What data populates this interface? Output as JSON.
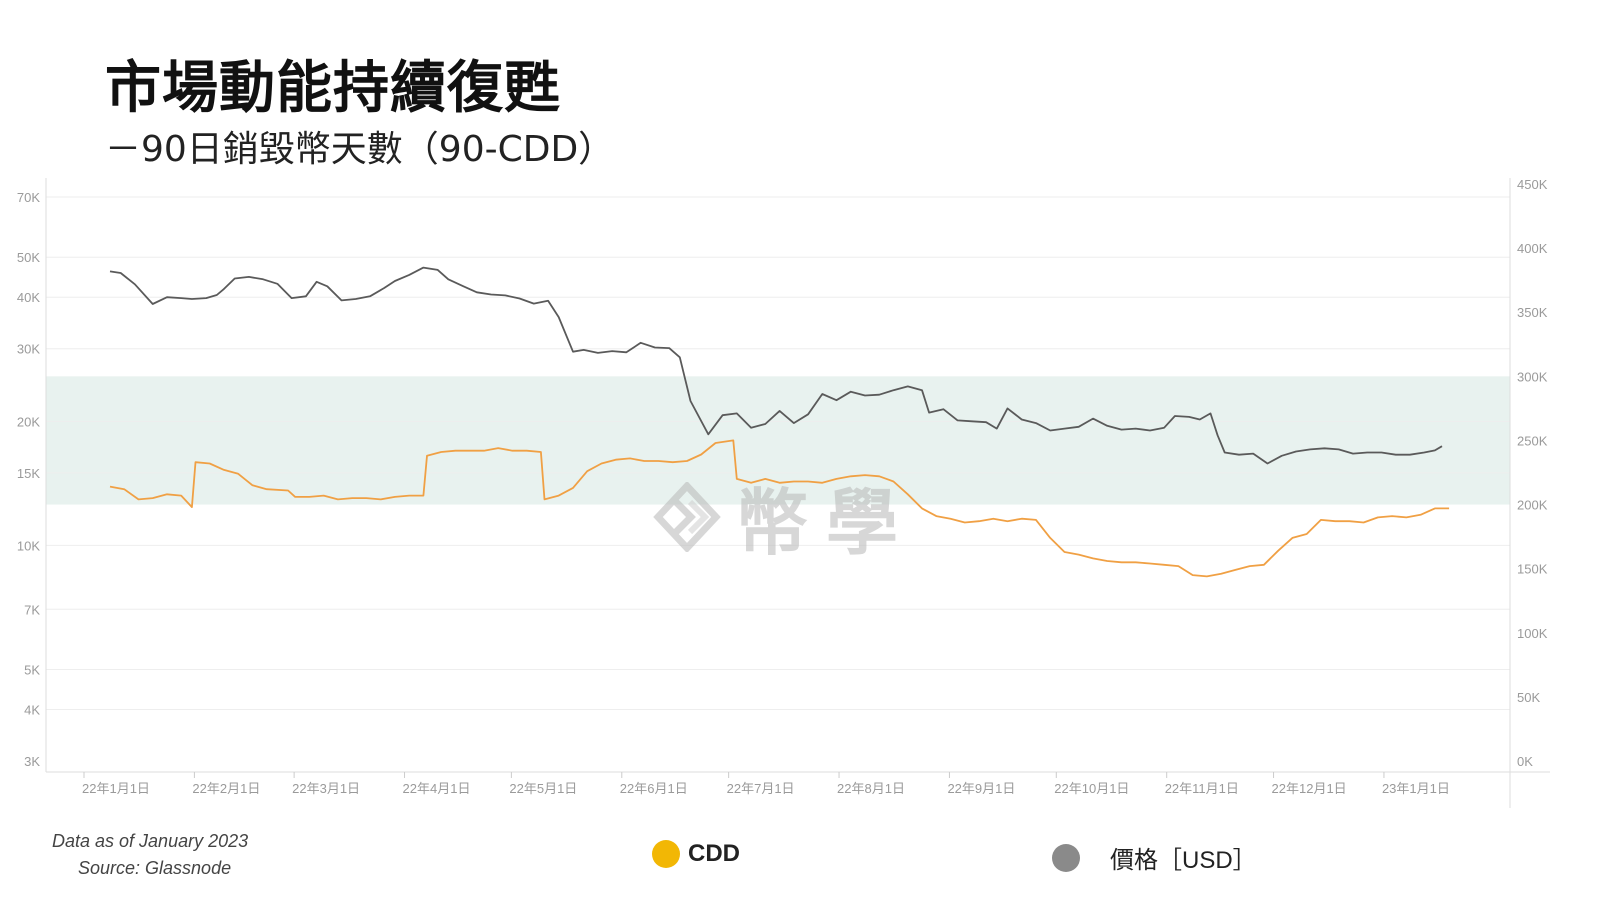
{
  "title": "市場動能持續復甦",
  "subtitle": "－90日銷毀幣天數（90-CDD）",
  "footnote": {
    "line1": "Data as of  January 2023",
    "line2": "Source: Glassnode"
  },
  "watermark": "幣學",
  "legend": [
    {
      "label": "CDD",
      "color": "#f2b705"
    },
    {
      "label": "價格［USD］",
      "color": "#8a8a8a"
    }
  ],
  "colors": {
    "price_line": "#5a5a5a",
    "cdd_line": "#f0a044",
    "band": "#e8f2ef",
    "grid": "#eeeeee"
  },
  "chart_data": {
    "type": "line",
    "x_ticks": [
      "22年1月1日",
      "22年2月1日",
      "22年3月1日",
      "22年4月1日",
      "22年5月1日",
      "22年6月1日",
      "22年7月1日",
      "22年8月1日",
      "22年9月1日",
      "22年10月1日",
      "22年11月1日",
      "22年12月1日",
      "23年1月1日"
    ],
    "y_left": {
      "scale": "log",
      "ticks": [
        "3K",
        "4K",
        "5K",
        "7K",
        "10K",
        "15K",
        "20K",
        "30K",
        "40K",
        "50K",
        "70K"
      ],
      "tick_values": [
        3000,
        4000,
        5000,
        7000,
        10000,
        15000,
        20000,
        30000,
        40000,
        50000,
        70000
      ]
    },
    "y_right": {
      "scale": "linear",
      "ticks": [
        "0K",
        "50K",
        "100K",
        "150K",
        "200K",
        "250K",
        "300K",
        "350K",
        "400K",
        "450K"
      ],
      "tick_values": [
        0,
        50000,
        100000,
        150000,
        200000,
        250000,
        300000,
        350000,
        400000,
        450000
      ]
    },
    "band": {
      "axis": "right",
      "range": [
        200000,
        300000
      ]
    },
    "grid": true,
    "series": [
      {
        "name": "價格［USD］",
        "axis": "left",
        "points": [
          [
            "2022-01-01",
            46200
          ],
          [
            "2022-01-04",
            45800
          ],
          [
            "2022-01-08",
            43000
          ],
          [
            "2022-01-13",
            38500
          ],
          [
            "2022-01-17",
            40000
          ],
          [
            "2022-01-21",
            39800
          ],
          [
            "2022-01-24",
            39600
          ],
          [
            "2022-01-28",
            39800
          ],
          [
            "2022-01-31",
            40500
          ],
          [
            "2022-02-02",
            41900
          ],
          [
            "2022-02-05",
            44400
          ],
          [
            "2022-02-09",
            44800
          ],
          [
            "2022-02-13",
            44200
          ],
          [
            "2022-02-17",
            43100
          ],
          [
            "2022-02-21",
            39800
          ],
          [
            "2022-02-25",
            40200
          ],
          [
            "2022-02-28",
            43600
          ],
          [
            "2022-03-03",
            42500
          ],
          [
            "2022-03-07",
            39300
          ],
          [
            "2022-03-11",
            39600
          ],
          [
            "2022-03-15",
            40200
          ],
          [
            "2022-03-19",
            42100
          ],
          [
            "2022-03-22",
            43800
          ],
          [
            "2022-03-26",
            45300
          ],
          [
            "2022-03-30",
            47200
          ],
          [
            "2022-04-03",
            46600
          ],
          [
            "2022-04-06",
            44200
          ],
          [
            "2022-04-10",
            42600
          ],
          [
            "2022-04-14",
            41100
          ],
          [
            "2022-04-18",
            40600
          ],
          [
            "2022-04-22",
            40400
          ],
          [
            "2022-04-26",
            39700
          ],
          [
            "2022-04-30",
            38600
          ],
          [
            "2022-05-04",
            39200
          ],
          [
            "2022-05-07",
            35800
          ],
          [
            "2022-05-11",
            29500
          ],
          [
            "2022-05-14",
            29800
          ],
          [
            "2022-05-18",
            29300
          ],
          [
            "2022-05-22",
            29600
          ],
          [
            "2022-05-26",
            29400
          ],
          [
            "2022-05-30",
            31000
          ],
          [
            "2022-06-03",
            30200
          ],
          [
            "2022-06-07",
            30100
          ],
          [
            "2022-06-10",
            28600
          ],
          [
            "2022-06-13",
            22400
          ],
          [
            "2022-06-18",
            18600
          ],
          [
            "2022-06-22",
            20700
          ],
          [
            "2022-06-26",
            20900
          ],
          [
            "2022-06-30",
            19300
          ],
          [
            "2022-07-04",
            19700
          ],
          [
            "2022-07-08",
            21200
          ],
          [
            "2022-07-12",
            19800
          ],
          [
            "2022-07-16",
            20800
          ],
          [
            "2022-07-20",
            23300
          ],
          [
            "2022-07-24",
            22500
          ],
          [
            "2022-07-28",
            23600
          ],
          [
            "2022-08-01",
            23100
          ],
          [
            "2022-08-05",
            23200
          ],
          [
            "2022-08-09",
            23800
          ],
          [
            "2022-08-13",
            24300
          ],
          [
            "2022-08-17",
            23800
          ],
          [
            "2022-08-19",
            21000
          ],
          [
            "2022-08-23",
            21400
          ],
          [
            "2022-08-27",
            20100
          ],
          [
            "2022-08-31",
            20000
          ],
          [
            "2022-09-04",
            19900
          ],
          [
            "2022-09-07",
            19200
          ],
          [
            "2022-09-10",
            21500
          ],
          [
            "2022-09-14",
            20200
          ],
          [
            "2022-09-18",
            19800
          ],
          [
            "2022-09-22",
            19000
          ],
          [
            "2022-09-26",
            19200
          ],
          [
            "2022-09-30",
            19400
          ],
          [
            "2022-10-04",
            20300
          ],
          [
            "2022-10-08",
            19500
          ],
          [
            "2022-10-12",
            19100
          ],
          [
            "2022-10-16",
            19200
          ],
          [
            "2022-10-20",
            19000
          ],
          [
            "2022-10-24",
            19300
          ],
          [
            "2022-10-27",
            20600
          ],
          [
            "2022-10-31",
            20500
          ],
          [
            "2022-11-03",
            20200
          ],
          [
            "2022-11-06",
            20900
          ],
          [
            "2022-11-08",
            18500
          ],
          [
            "2022-11-10",
            16800
          ],
          [
            "2022-11-14",
            16600
          ],
          [
            "2022-11-18",
            16700
          ],
          [
            "2022-11-22",
            15800
          ],
          [
            "2022-11-26",
            16500
          ],
          [
            "2022-11-30",
            16900
          ],
          [
            "2022-12-04",
            17100
          ],
          [
            "2022-12-08",
            17200
          ],
          [
            "2022-12-12",
            17100
          ],
          [
            "2022-12-16",
            16700
          ],
          [
            "2022-12-20",
            16800
          ],
          [
            "2022-12-24",
            16800
          ],
          [
            "2022-12-28",
            16600
          ],
          [
            "2023-01-01",
            16600
          ],
          [
            "2023-01-05",
            16800
          ],
          [
            "2023-01-08",
            17000
          ],
          [
            "2023-01-10",
            17400
          ]
        ]
      },
      {
        "name": "CDD",
        "axis": "right",
        "points": [
          [
            "2022-01-01",
            214000
          ],
          [
            "2022-01-05",
            212000
          ],
          [
            "2022-01-09",
            204000
          ],
          [
            "2022-01-13",
            205000
          ],
          [
            "2022-01-17",
            208000
          ],
          [
            "2022-01-21",
            207000
          ],
          [
            "2022-01-24",
            198000
          ],
          [
            "2022-01-25",
            233000
          ],
          [
            "2022-01-29",
            232000
          ],
          [
            "2022-02-02",
            227000
          ],
          [
            "2022-02-06",
            224000
          ],
          [
            "2022-02-10",
            215000
          ],
          [
            "2022-02-14",
            212000
          ],
          [
            "2022-02-20",
            211000
          ],
          [
            "2022-02-22",
            206000
          ],
          [
            "2022-02-26",
            206000
          ],
          [
            "2022-03-02",
            207000
          ],
          [
            "2022-03-06",
            204000
          ],
          [
            "2022-03-10",
            205000
          ],
          [
            "2022-03-14",
            205000
          ],
          [
            "2022-03-18",
            204000
          ],
          [
            "2022-03-22",
            206000
          ],
          [
            "2022-03-26",
            207000
          ],
          [
            "2022-03-30",
            207000
          ],
          [
            "2022-03-31",
            238000
          ],
          [
            "2022-04-04",
            241000
          ],
          [
            "2022-04-08",
            242000
          ],
          [
            "2022-04-12",
            242000
          ],
          [
            "2022-04-16",
            242000
          ],
          [
            "2022-04-20",
            244000
          ],
          [
            "2022-04-24",
            242000
          ],
          [
            "2022-04-28",
            242000
          ],
          [
            "2022-05-02",
            241000
          ],
          [
            "2022-05-03",
            204000
          ],
          [
            "2022-05-07",
            207000
          ],
          [
            "2022-05-11",
            213000
          ],
          [
            "2022-05-15",
            226000
          ],
          [
            "2022-05-19",
            232000
          ],
          [
            "2022-05-23",
            235000
          ],
          [
            "2022-05-27",
            236000
          ],
          [
            "2022-05-31",
            234000
          ],
          [
            "2022-06-04",
            234000
          ],
          [
            "2022-06-08",
            233000
          ],
          [
            "2022-06-12",
            234000
          ],
          [
            "2022-06-16",
            239000
          ],
          [
            "2022-06-20",
            248000
          ],
          [
            "2022-06-25",
            250000
          ],
          [
            "2022-06-26",
            220000
          ],
          [
            "2022-06-30",
            217000
          ],
          [
            "2022-07-04",
            220000
          ],
          [
            "2022-07-08",
            217000
          ],
          [
            "2022-07-12",
            218000
          ],
          [
            "2022-07-16",
            218000
          ],
          [
            "2022-07-20",
            217000
          ],
          [
            "2022-07-24",
            220000
          ],
          [
            "2022-07-28",
            222000
          ],
          [
            "2022-08-01",
            223000
          ],
          [
            "2022-08-05",
            222000
          ],
          [
            "2022-08-09",
            218000
          ],
          [
            "2022-08-13",
            208000
          ],
          [
            "2022-08-17",
            197000
          ],
          [
            "2022-08-21",
            191000
          ],
          [
            "2022-08-25",
            189000
          ],
          [
            "2022-08-29",
            186000
          ],
          [
            "2022-09-02",
            187000
          ],
          [
            "2022-09-06",
            189000
          ],
          [
            "2022-09-10",
            187000
          ],
          [
            "2022-09-14",
            189000
          ],
          [
            "2022-09-18",
            188000
          ],
          [
            "2022-09-22",
            174000
          ],
          [
            "2022-09-26",
            163000
          ],
          [
            "2022-09-30",
            161000
          ],
          [
            "2022-10-04",
            158000
          ],
          [
            "2022-10-08",
            156000
          ],
          [
            "2022-10-12",
            155000
          ],
          [
            "2022-10-16",
            155000
          ],
          [
            "2022-10-20",
            154000
          ],
          [
            "2022-10-24",
            153000
          ],
          [
            "2022-10-28",
            152000
          ],
          [
            "2022-11-01",
            145000
          ],
          [
            "2022-11-05",
            144000
          ],
          [
            "2022-11-09",
            146000
          ],
          [
            "2022-11-13",
            149000
          ],
          [
            "2022-11-17",
            152000
          ],
          [
            "2022-11-21",
            153000
          ],
          [
            "2022-11-25",
            164000
          ],
          [
            "2022-11-29",
            174000
          ],
          [
            "2022-12-03",
            177000
          ],
          [
            "2022-12-07",
            188000
          ],
          [
            "2022-12-11",
            187000
          ],
          [
            "2022-12-15",
            187000
          ],
          [
            "2022-12-19",
            186000
          ],
          [
            "2022-12-23",
            190000
          ],
          [
            "2022-12-27",
            191000
          ],
          [
            "2022-12-31",
            190000
          ],
          [
            "2023-01-04",
            192000
          ],
          [
            "2023-01-08",
            197000
          ],
          [
            "2023-01-12",
            197000
          ]
        ]
      }
    ]
  }
}
